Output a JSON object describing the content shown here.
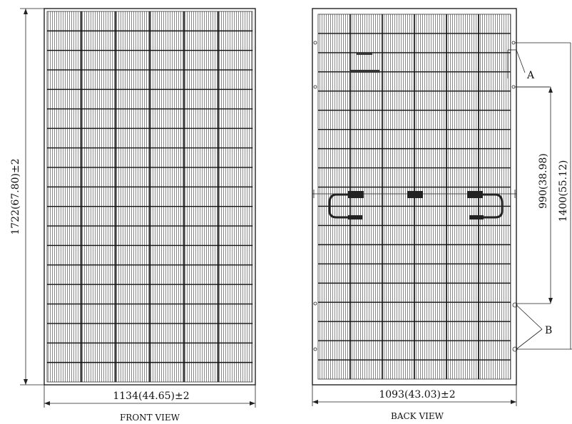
{
  "front": {
    "height_dim": "1722(67.80)±2",
    "width_dim": "1134(44.65)±2",
    "view_label": "FRONT VIEW"
  },
  "back": {
    "width_dim": "1093(43.03)±2",
    "view_label": "BACK VIEW",
    "dim_990": "990(38.98)",
    "dim_1400": "1400(55.12)",
    "callout_a": "A",
    "callout_b": "B"
  }
}
